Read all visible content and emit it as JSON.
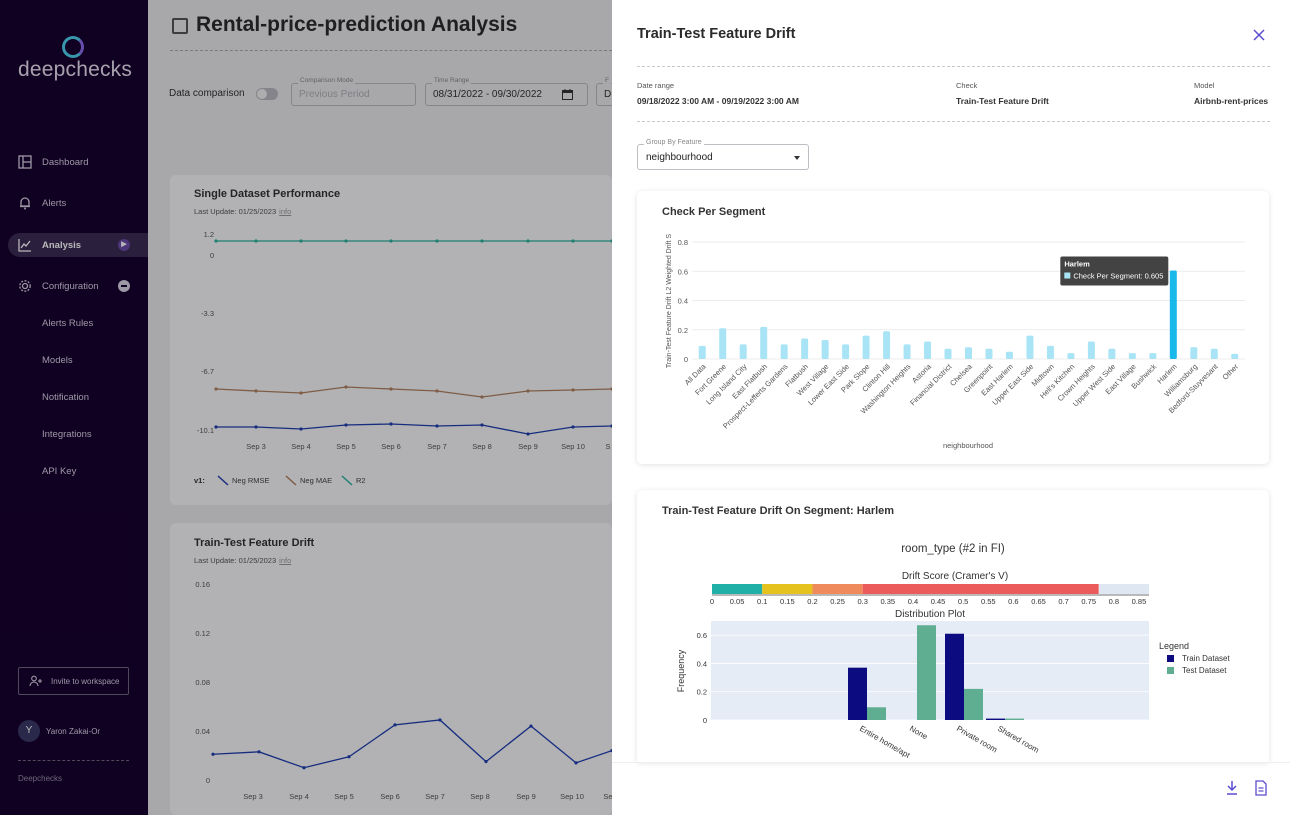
{
  "sidebar": {
    "logo_text": "deepchecks",
    "nav": [
      {
        "label": "Dashboard",
        "icon": "dashboard-icon"
      },
      {
        "label": "Alerts",
        "icon": "bell-icon"
      },
      {
        "label": "Analysis",
        "icon": "analysis-chart-icon",
        "active": true
      },
      {
        "label": "Configuration",
        "icon": "gear-icon"
      }
    ],
    "config_items": [
      "Alerts Rules",
      "Models",
      "Notification",
      "Integrations",
      "API Key"
    ],
    "invite_label": "Invite to workspace",
    "user_initial": "Y",
    "user_name": "Yaron Zakai-Or",
    "footer": "Deepchecks"
  },
  "page": {
    "title": "Rental-price-prediction Analysis",
    "data_comparison_label": "Data comparison",
    "comparison_mode_label": "Comparison Mode",
    "comparison_mode_value": "Previous Period",
    "time_range_label": "Time Range",
    "time_range_value": "08/31/2022 - 09/30/2022",
    "fourth_field_label": "F",
    "fourth_field_value": "D",
    "card1": {
      "title": "Single Dataset Performance",
      "last_update": "Last Update: 01/25/2023",
      "info": "info",
      "y_ticks": [
        "1.2",
        "0",
        "-3.3",
        "-6.7",
        "-10.1"
      ],
      "x_ticks": [
        "Sep 3",
        "Sep 4",
        "Sep 5",
        "Sep 6",
        "Sep 7",
        "Sep 8",
        "Sep 9",
        "Sep 10",
        "S"
      ],
      "legend_prefix": "v1:",
      "legend": [
        "Neg RMSE",
        "Neg MAE",
        "R2"
      ],
      "series_colors": [
        "#1f3fb0",
        "#b08060",
        "#2bb0a0"
      ]
    },
    "card2": {
      "title": "Train-Test Feature Drift",
      "last_update": "Last Update: 01/25/2023",
      "info": "info",
      "y_ticks": [
        "0.16",
        "0.12",
        "0.08",
        "0.04",
        "0"
      ],
      "x_ticks": [
        "Sep 3",
        "Sep 4",
        "Sep 5",
        "Sep 6",
        "Sep 7",
        "Sep 8",
        "Sep 9",
        "Sep 10",
        "Se"
      ]
    }
  },
  "drawer": {
    "title": "Train-Test Feature Drift",
    "meta": [
      {
        "label": "Date range",
        "value": "09/18/2022 3:00 AM - 09/19/2022 3:00 AM"
      },
      {
        "label": "Check",
        "value": "Train-Test Feature Drift"
      },
      {
        "label": "Model",
        "value": "Airbnb-rent-prices"
      }
    ],
    "group_by_label": "Group By Feature",
    "group_by_value": "neighbourhood",
    "segment_card_title": "Check Per Segment",
    "tooltip_title": "Harlem",
    "tooltip_text": "Check Per Segment: 0.605",
    "drift_card_title": "Train-Test Feature Drift On Segment: Harlem",
    "footer_icons": [
      "download-icon",
      "report-icon"
    ]
  },
  "chart_data": [
    {
      "type": "bar",
      "title": "",
      "xlabel": "neighbourhood",
      "ylabel": "Train-Test Feature Drift L2 Weighted Drift S",
      "ylim": [
        0,
        0.8
      ],
      "y_ticks": [
        "0",
        "0.2",
        "0.4",
        "0.6",
        "0.8"
      ],
      "categories": [
        "All Data",
        "Fort Greene",
        "Long Island City",
        "East Flatbush",
        "Prospect-Lefferts Gardens",
        "Flatbush",
        "West Village",
        "Lower East Side",
        "Park Slope",
        "Clinton Hill",
        "Washington Heights",
        "Astoria",
        "Financial District",
        "Chelsea",
        "Greenpoint",
        "East Harlem",
        "Upper East Side",
        "Midtown",
        "Hell's Kitchen",
        "Crown Heights",
        "Upper West Side",
        "East Village",
        "Bushwick",
        "Harlem",
        "Williamsburg",
        "Bedford-Stuyvesant",
        "Other"
      ],
      "values": [
        0.09,
        0.21,
        0.1,
        0.22,
        0.1,
        0.14,
        0.13,
        0.1,
        0.16,
        0.19,
        0.1,
        0.12,
        0.07,
        0.08,
        0.07,
        0.05,
        0.16,
        0.09,
        0.04,
        0.12,
        0.07,
        0.04,
        0.04,
        0.605,
        0.08,
        0.07,
        0.035
      ],
      "highlight": "Harlem",
      "bar_color": "#a8e4f5",
      "highlight_color": "#19b8ea",
      "grid": true
    },
    {
      "type": "bar",
      "title": "room_type (#2 in FI)",
      "gauge_title": "Drift Score (Cramer's V)",
      "gauge_value": 0.77,
      "gauge_range": [
        0,
        0.87
      ],
      "gauge_ticks": [
        "0",
        "0.05",
        "0.1",
        "0.15",
        "0.2",
        "0.25",
        "0.3",
        "0.35",
        "0.4",
        "0.45",
        "0.5",
        "0.55",
        "0.6",
        "0.65",
        "0.7",
        "0.75",
        "0.8",
        "0.85"
      ],
      "gauge_colors": [
        "#21b0a8",
        "#e6c21f",
        "#ee8a5c",
        "#ec5b5b",
        "#dfe7f3"
      ],
      "plot_title": "Distribution Plot",
      "ylabel": "Frequency",
      "ylim": [
        0,
        0.7
      ],
      "y_ticks": [
        "0",
        "0.2",
        "0.4",
        "0.6"
      ],
      "categories": [
        "Entire home/apt",
        "None",
        "Private room",
        "Shared room"
      ],
      "series": [
        {
          "name": "Train Dataset",
          "values": [
            0.37,
            0,
            0.61,
            0.01
          ],
          "color": "#0c0c80"
        },
        {
          "name": "Test Dataset",
          "values": [
            0.09,
            0.67,
            0.22,
            0.01
          ],
          "color": "#5fae92"
        }
      ],
      "legend_title": "Legend"
    }
  ]
}
